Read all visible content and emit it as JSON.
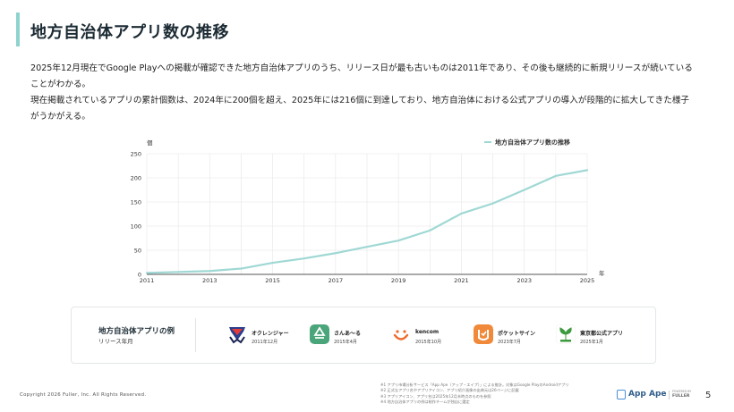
{
  "header": {
    "title": "地方自治体アプリ数の推移"
  },
  "description": {
    "p1": "2025年12月現在でGoogle Playへの掲載が確認できた地方自治体アプリのうち、リリース日が最も古いものは2011年であり、その後も継続的に新規リリースが続いていることがわかる。",
    "p2": "現在掲載されているアプリの累計個数は、2024年に200個を超え、2025年には216個に到達しており、地方自治体における公式アプリの導入が段階的に拡大してきた様子がうかがえる。"
  },
  "chart_data": {
    "type": "line",
    "title": "",
    "ylabel": "個",
    "xlabel": "年",
    "ylim": [
      0,
      250
    ],
    "xlim": [
      2011,
      2025
    ],
    "yticks": [
      "0",
      "50",
      "100",
      "150",
      "200",
      "250"
    ],
    "xticks": [
      "2011",
      "2013",
      "2015",
      "2017",
      "2019",
      "2021",
      "2023",
      "2025"
    ],
    "grid": true,
    "legend_position": "top-right",
    "series": [
      {
        "name": "地方自治体アプリ数の推移",
        "color": "#9fd8d4",
        "x": [
          2011,
          2012,
          2013,
          2014,
          2015,
          2016,
          2017,
          2018,
          2019,
          2020,
          2021,
          2022,
          2023,
          2024,
          2025
        ],
        "y": [
          3,
          5,
          7,
          12,
          24,
          33,
          44,
          57,
          70,
          91,
          126,
          147,
          175,
          204,
          216
        ]
      }
    ]
  },
  "examples": {
    "title": "地方自治体アプリの例",
    "subtitle": "リリース年月",
    "apps": [
      {
        "name": "オクレンジャー",
        "date": "2011年12月",
        "icon": "okuranger-icon",
        "color": "#2b3f8a"
      },
      {
        "name": "さんあ～る",
        "date": "2015年4月",
        "icon": "recycle-icon",
        "color": "#4aa57a"
      },
      {
        "name": "kencom",
        "date": "2015年10月",
        "icon": "kencom-smile-icon",
        "color": "#ef6b2d"
      },
      {
        "name": "ポケットサイン",
        "date": "2023年7月",
        "icon": "pocketsign-icon",
        "color": "#f08a3a"
      },
      {
        "name": "東京都公式アプリ",
        "date": "2025年1月",
        "icon": "tokyo-ginkgo-icon",
        "color": "#3c9a3e"
      }
    ]
  },
  "footer": {
    "copyright": "Copyright 2026 Fuller, Inc. All Rights Reserved.",
    "notes": [
      "※1 アプリ市場分析サービス「App Ape（アップ・エイプ）」による推計。対象はGoogle PlayのAndroidアプリ",
      "※2 正式なアプリ名やアプリアイコン、アプリ紹介画像の出典元は26ページに記載",
      "※3 アプリアイコン、アプリ名は2025年12月末時点のものを参照",
      "※4 地方自治体アプリの例は制作チームが独自に選定"
    ],
    "logo_text": "App Ape",
    "logo_by": "POWERED BY",
    "logo_fuller": "FULLER",
    "page_number": "5"
  }
}
